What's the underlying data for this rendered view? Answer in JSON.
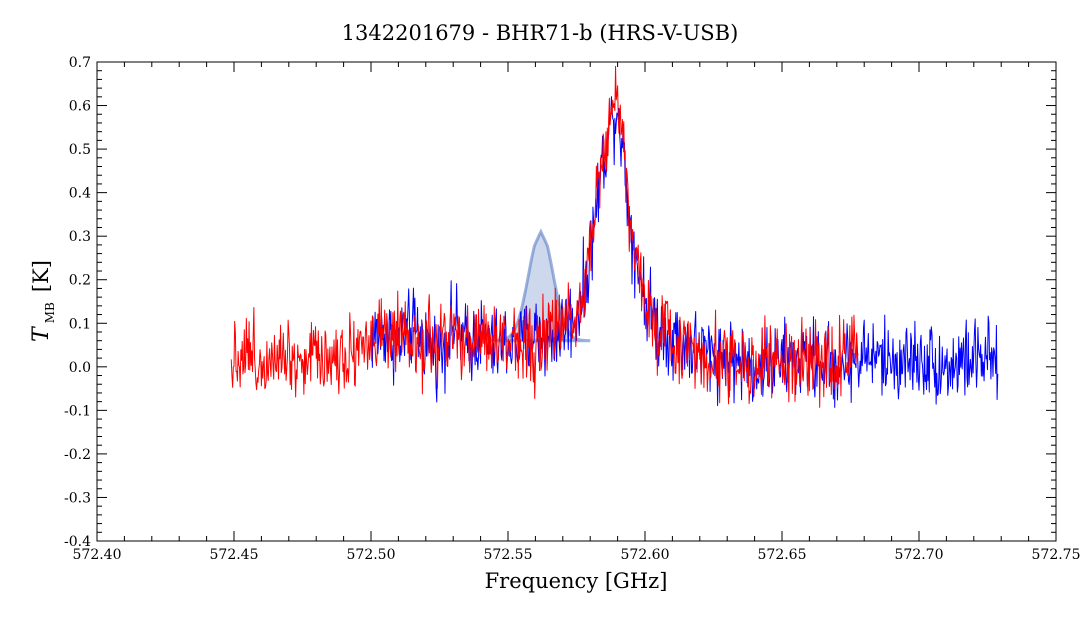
{
  "chart_data": {
    "type": "line",
    "title": "1342201679 - BHR71-b (HRS-V-USB)",
    "xlabel": "Frequency [GHz]",
    "ylabel": {
      "main": "T",
      "subscript": "MB",
      "unit": "[K]"
    },
    "xlim": [
      572.4,
      572.75
    ],
    "ylim": [
      -0.4,
      0.7
    ],
    "xticks": [
      572.4,
      572.45,
      572.5,
      572.55,
      572.6,
      572.65,
      572.7,
      572.75
    ],
    "yticks": [
      -0.4,
      -0.3,
      -0.2,
      -0.1,
      0.0,
      0.1,
      0.2,
      0.3,
      0.4,
      0.5,
      0.6,
      0.7
    ],
    "xtick_labels": [
      "572.40",
      "572.45",
      "572.50",
      "572.55",
      "572.60",
      "572.65",
      "572.70",
      "572.75"
    ],
    "ytick_labels": [
      "-0.4",
      "-0.3",
      "-0.2",
      "-0.1",
      "0.0",
      "0.1",
      "0.2",
      "0.3",
      "0.4",
      "0.5",
      "0.6",
      "0.7"
    ],
    "grid": false,
    "legend": null,
    "series": [
      {
        "color": "#0000ff",
        "x": [
          572.5,
          572.505,
          572.51,
          572.515,
          572.52,
          572.525,
          572.53,
          572.535,
          572.54,
          572.545,
          572.55,
          572.555,
          572.56,
          572.565,
          572.57,
          572.575,
          572.578,
          572.58,
          572.582,
          572.584,
          572.586,
          572.588,
          572.59,
          572.592,
          572.594,
          572.596,
          572.598,
          572.6,
          572.605,
          572.61,
          572.62,
          572.63,
          572.64,
          572.65,
          572.66,
          572.67,
          572.68,
          572.69,
          572.7,
          572.71,
          572.72,
          572.729
        ],
        "y": [
          0.07,
          0.08,
          0.05,
          0.09,
          0.06,
          0.03,
          0.1,
          0.05,
          0.07,
          0.04,
          0.06,
          0.05,
          0.08,
          0.06,
          0.09,
          0.12,
          0.18,
          0.26,
          0.36,
          0.45,
          0.52,
          0.57,
          0.6,
          0.5,
          0.37,
          0.27,
          0.22,
          0.16,
          0.09,
          0.07,
          0.04,
          0.02,
          0.0,
          0.01,
          0.02,
          0.0,
          0.03,
          0.01,
          0.02,
          0.0,
          0.02,
          0.01
        ],
        "noise": 0.055
      },
      {
        "color": "#ff0000",
        "x": [
          572.449,
          572.455,
          572.46,
          572.465,
          572.47,
          572.475,
          572.48,
          572.485,
          572.49,
          572.495,
          572.5,
          572.505,
          572.51,
          572.515,
          572.52,
          572.525,
          572.53,
          572.535,
          572.54,
          572.545,
          572.55,
          572.555,
          572.56,
          572.565,
          572.57,
          572.575,
          572.578,
          572.58,
          572.582,
          572.584,
          572.586,
          572.588,
          572.59,
          572.592,
          572.594,
          572.596,
          572.598,
          572.6,
          572.605,
          572.61,
          572.62,
          572.63,
          572.64,
          572.65,
          572.66,
          572.67,
          572.678
        ],
        "y": [
          0.02,
          0.04,
          0.0,
          0.05,
          0.03,
          0.01,
          0.04,
          0.02,
          0.03,
          0.05,
          0.06,
          0.07,
          0.06,
          0.04,
          0.05,
          0.06,
          0.07,
          0.04,
          0.08,
          0.05,
          0.06,
          0.07,
          0.04,
          0.08,
          0.1,
          0.13,
          0.2,
          0.28,
          0.38,
          0.47,
          0.54,
          0.6,
          0.61,
          0.52,
          0.39,
          0.28,
          0.21,
          0.14,
          0.08,
          0.06,
          0.03,
          0.02,
          0.0,
          0.01,
          0.0,
          0.02,
          0.03
        ],
        "noise": 0.055
      }
    ],
    "annotation": {
      "shape": "gaussian",
      "color": "#5b7fc4",
      "center": 572.562,
      "sigma": 0.0045,
      "amplitude": 0.25,
      "baseline": 0.06,
      "fill_opacity": 0.3
    }
  }
}
